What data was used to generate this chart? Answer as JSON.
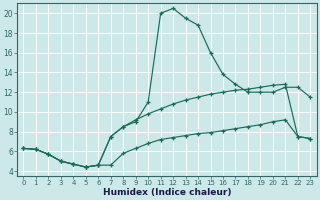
{
  "xlabel": "Humidex (Indice chaleur)",
  "bg_color": "#cce8e8",
  "grid_color": "#ffffff",
  "line_color": "#1a6b5a",
  "xlim_min": -0.5,
  "xlim_max": 23.5,
  "ylim_min": 3.5,
  "ylim_max": 21.0,
  "xticks": [
    0,
    1,
    2,
    3,
    4,
    5,
    6,
    7,
    8,
    9,
    10,
    11,
    12,
    13,
    14,
    15,
    16,
    17,
    18,
    19,
    20,
    21,
    22,
    23
  ],
  "yticks": [
    4,
    6,
    8,
    10,
    12,
    14,
    16,
    18,
    20
  ],
  "line1_x": [
    0,
    1,
    2,
    3,
    4,
    5,
    6,
    7,
    8,
    9,
    10,
    11,
    12,
    13,
    14,
    15,
    16,
    17,
    18,
    19,
    20,
    21,
    22,
    23
  ],
  "line1_y": [
    6.3,
    6.2,
    5.7,
    5.0,
    4.7,
    4.4,
    4.6,
    7.5,
    8.5,
    9.0,
    11.0,
    20.0,
    20.5,
    19.5,
    18.8,
    16.0,
    13.8,
    12.8,
    12.0,
    12.0,
    12.0,
    12.5,
    12.5,
    11.5
  ],
  "line2_x": [
    0,
    1,
    2,
    3,
    4,
    5,
    6,
    7,
    8,
    9,
    10,
    11,
    12,
    13,
    14,
    15,
    16,
    17,
    18,
    19,
    20,
    21,
    22,
    23
  ],
  "line2_y": [
    6.3,
    6.2,
    5.7,
    5.0,
    4.7,
    4.4,
    4.6,
    7.5,
    8.5,
    9.2,
    9.8,
    10.3,
    10.8,
    11.2,
    11.5,
    11.8,
    12.0,
    12.2,
    12.3,
    12.5,
    12.7,
    12.8,
    7.5,
    7.3
  ],
  "line3_x": [
    0,
    1,
    2,
    3,
    4,
    5,
    6,
    7,
    8,
    9,
    10,
    11,
    12,
    13,
    14,
    15,
    16,
    17,
    18,
    19,
    20,
    21,
    22,
    23
  ],
  "line3_y": [
    6.3,
    6.2,
    5.7,
    5.0,
    4.7,
    4.4,
    4.6,
    4.6,
    5.8,
    6.3,
    6.8,
    7.2,
    7.4,
    7.6,
    7.8,
    7.9,
    8.1,
    8.3,
    8.5,
    8.7,
    9.0,
    9.2,
    7.5,
    7.3
  ]
}
